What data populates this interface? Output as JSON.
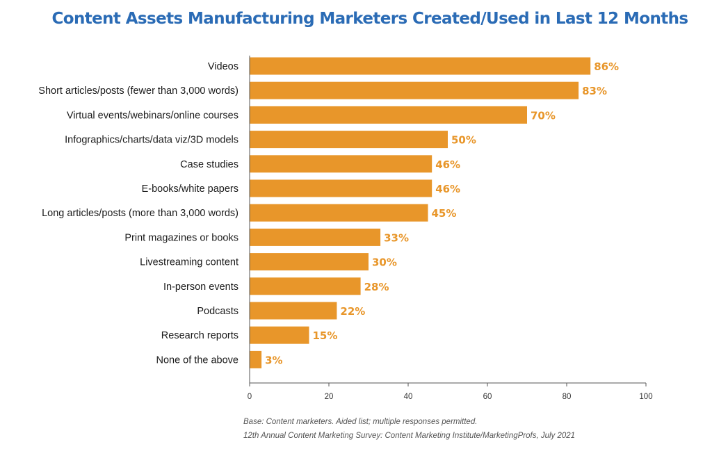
{
  "chart_data": {
    "type": "bar",
    "orientation": "horizontal",
    "title": "Content Assets Manufacturing Marketers Created/Used in Last 12 Months",
    "categories": [
      "Videos",
      "Short articles/posts (fewer than 3,000 words)",
      "Virtual events/webinars/online courses",
      "Infographics/charts/data viz/3D models",
      "Case studies",
      "E-books/white papers",
      "Long articles/posts (more than 3,000 words)",
      "Print magazines or books",
      "Livestreaming content",
      "In-person events",
      "Podcasts",
      "Research reports",
      "None of the above"
    ],
    "values": [
      86,
      83,
      70,
      50,
      46,
      46,
      45,
      33,
      30,
      28,
      22,
      15,
      3
    ],
    "value_labels": [
      "86%",
      "83%",
      "70%",
      "50%",
      "46%",
      "46%",
      "45%",
      "33%",
      "30%",
      "28%",
      "22%",
      "15%",
      "3%"
    ],
    "xlim": [
      0,
      100
    ],
    "xticks": [
      0,
      20,
      40,
      60,
      80,
      100
    ],
    "xlabel": "",
    "ylabel": "",
    "grid": false,
    "bar_color": "#e8962a",
    "label_color": "#e8962a",
    "title_color": "#2a6bb5"
  },
  "footnotes": {
    "base": "Base: Content marketers. Aided list; multiple responses permitted.",
    "source": "12th Annual Content Marketing Survey: Content Marketing Institute/MarketingProfs, July 2021"
  }
}
